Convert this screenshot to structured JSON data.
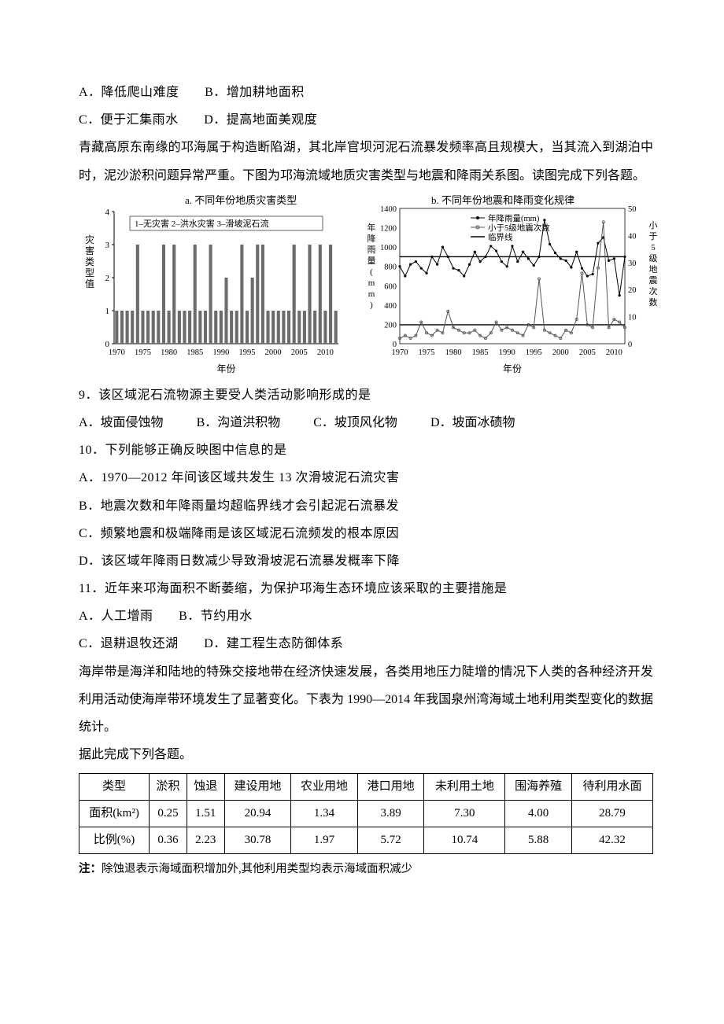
{
  "q8": {
    "opts": {
      "a": "A．降低爬山难度",
      "b": "B．增加耕地面积",
      "c": "C．便于汇集雨水",
      "d": "D．提高地面美观度"
    }
  },
  "passageQiong": "青藏高原东南缘的邛海属于构造断陷湖，其北岸官坝河泥石流暴发频率高且规模大，当其流入到湖泊中时，泥沙淤积问题异常严重。下图为邛海流域地质灾害类型与地震和降雨关系图。读图完成下列各题。",
  "chartA": {
    "title": "a. 不同年份地质灾害类型",
    "legend": "1–无灾害  2–洪水灾害  3–滑坡泥石流",
    "xlabel": "年份",
    "ylabel": "灾害类型值",
    "xticks": [
      "1970",
      "1975",
      "1980",
      "1985",
      "1990",
      "1995",
      "2000",
      "2005",
      "2010"
    ],
    "ylim": [
      0,
      4
    ],
    "values": [
      1,
      1,
      1,
      1,
      3,
      1,
      1,
      1,
      1,
      3,
      1,
      3,
      1,
      1,
      1,
      3,
      1,
      1,
      3,
      1,
      1,
      2,
      1,
      1,
      3,
      1,
      2,
      3,
      3,
      1,
      1,
      1,
      1,
      1,
      3,
      1,
      1,
      3,
      1,
      3,
      1,
      3,
      1
    ],
    "bar_color": "#6b6b6b",
    "grid_color": "#888888",
    "text_color": "#000000"
  },
  "chartB": {
    "title": "b. 不同年份地震和降雨变化规律",
    "legend": {
      "rain": "年降雨量(mm)",
      "quake": "小于5级地震次数",
      "crit": "临界线"
    },
    "xlabel": "年份",
    "ylabelL": "年降雨量(mm)",
    "ylabelR": "小于5级地震次数",
    "xticks": [
      "1970",
      "1975",
      "1980",
      "1985",
      "1990",
      "1995",
      "2000",
      "2005",
      "2010"
    ],
    "ylimL": [
      0,
      1400
    ],
    "ytickL": 200,
    "ylimR": [
      0,
      50
    ],
    "ytickR": 10,
    "rain": [
      800,
      700,
      820,
      850,
      780,
      730,
      900,
      820,
      1000,
      900,
      780,
      760,
      700,
      820,
      950,
      850,
      900,
      1010,
      960,
      850,
      800,
      1010,
      850,
      950,
      880,
      810,
      900,
      1280,
      1030,
      940,
      880,
      860,
      790,
      950,
      780,
      700,
      720,
      1040,
      1100,
      860,
      880,
      500,
      900
    ],
    "quake": [
      2,
      3,
      2,
      3,
      8,
      4,
      3,
      5,
      4,
      12,
      6,
      5,
      4,
      4,
      5,
      3,
      2,
      4,
      8,
      5,
      6,
      5,
      4,
      3,
      7,
      6,
      24,
      5,
      4,
      3,
      2,
      5,
      4,
      9,
      26,
      7,
      6,
      28,
      45,
      6,
      9,
      8,
      6
    ],
    "crit_rain": 900,
    "crit_quake": 7,
    "color_rain": "#000000",
    "color_quake": "#555555",
    "color_crit": "#000000"
  },
  "q9": {
    "stem": "9．该区域泥石流物源主要受人类活动影响形成的是",
    "opts": {
      "a": "A．坡面侵蚀物",
      "b": "B．沟道洪积物",
      "c": "C．坡顶风化物",
      "d": "D．坡面冰碛物"
    }
  },
  "q10": {
    "stem": "10．下列能够正确反映图中信息的是",
    "a": "A．1970—2012 年间该区域共发生 13 次滑坡泥石流灾害",
    "b": "B．地震次数和年降雨量均超临界线才会引起泥石流暴发",
    "c": "C．频繁地震和极端降雨是该区域泥石流频发的根本原因",
    "d": "D．该区域年降雨日数减少导致滑坡泥石流暴发概率下降"
  },
  "q11": {
    "stem": "11．近年来邛海面积不断萎缩，为保护邛海生态环境应该采取的主要措施是",
    "a": "A．人工增雨",
    "b": "B．节约用水",
    "c": "C．退耕退牧还湖",
    "d": "D．建工程生态防御体系"
  },
  "passageCoast": "海岸带是海洋和陆地的特殊交接地带在经济快速发展，各类用地压力陡增的情况下人类的各种经济开发利用活动使海岸带环境发生了显著变化。下表为 1990—2014 年我国泉州湾海域土地利用类型变化的数据统计。",
  "passageCoast2": "据此完成下列各题。",
  "table": {
    "headers": [
      "类型",
      "淤积",
      "蚀退",
      "建设用地",
      "农业用地",
      "港口用地",
      "未利用土地",
      "围海养殖",
      "待利用水面"
    ],
    "rows": [
      {
        "label": "面积(km²)",
        "cells": [
          "0.25",
          "1.51",
          "20.94",
          "1.34",
          "3.89",
          "7.30",
          "4.00",
          "28.79"
        ]
      },
      {
        "label": "比例(%)",
        "cells": [
          "0.36",
          "2.23",
          "30.78",
          "1.97",
          "5.72",
          "10.74",
          "5.88",
          "42.32"
        ]
      }
    ]
  },
  "note": {
    "prefix": "注：",
    "text": "除蚀退表示海域面积增加外,其他利用类型均表示海域面积减少"
  }
}
